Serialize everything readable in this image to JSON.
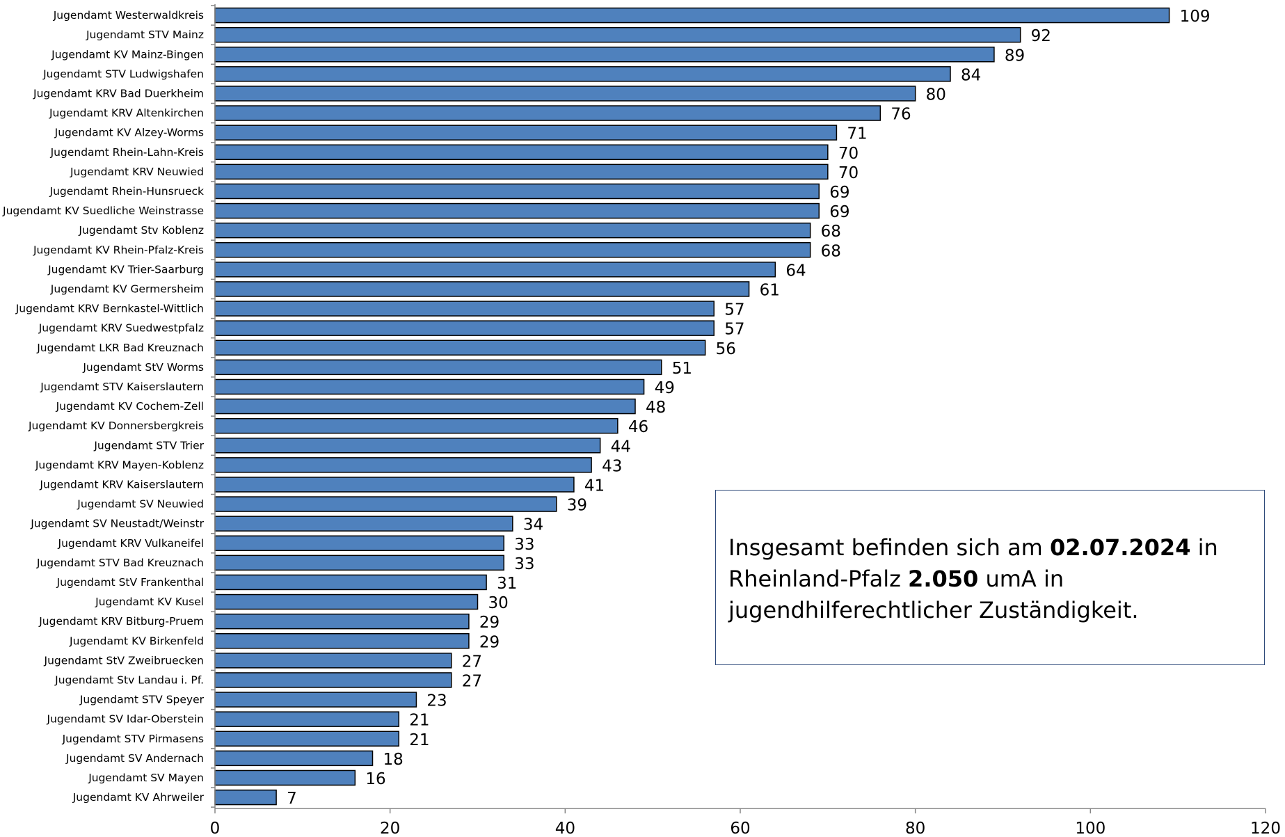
{
  "chart_data": {
    "type": "bar",
    "orientation": "horizontal",
    "categories": [
      "Jugendamt Westerwaldkreis",
      "Jugendamt STV Mainz",
      "Jugendamt KV Mainz-Bingen",
      "Jugendamt STV Ludwigshafen",
      "Jugendamt KRV Bad Duerkheim",
      "Jugendamt KRV Altenkirchen",
      "Jugendamt KV Alzey-Worms",
      "Jugendamt Rhein-Lahn-Kreis",
      "Jugendamt KRV Neuwied",
      "Jugendamt Rhein-Hunsrueck",
      "Jugendamt KV Suedliche Weinstrasse",
      "Jugendamt Stv Koblenz",
      "Jugendamt KV Rhein-Pfalz-Kreis",
      "Jugendamt KV Trier-Saarburg",
      "Jugendamt KV Germersheim",
      "Jugendamt KRV Bernkastel-Wittlich",
      "Jugendamt KRV Suedwestpfalz",
      "Jugendamt LKR Bad Kreuznach",
      "Jugendamt StV Worms",
      "Jugendamt STV Kaiserslautern",
      "Jugendamt KV Cochem-Zell",
      "Jugendamt KV Donnersbergkreis",
      "Jugendamt STV Trier",
      "Jugendamt KRV Mayen-Koblenz",
      "Jugendamt KRV Kaiserslautern",
      "Jugendamt SV Neuwied",
      "Jugendamt SV Neustadt/Weinstr",
      "Jugendamt KRV Vulkaneifel",
      "Jugendamt STV Bad Kreuznach",
      "Jugendamt StV Frankenthal",
      "Jugendamt KV Kusel",
      "Jugendamt KRV Bitburg-Pruem",
      "Jugendamt KV Birkenfeld",
      "Jugendamt StV Zweibruecken",
      "Jugendamt Stv Landau i. Pf.",
      "Jugendamt STV Speyer",
      "Jugendamt SV Idar-Oberstein",
      "Jugendamt STV Pirmasens",
      "Jugendamt SV Andernach",
      "Jugendamt SV Mayen",
      "Jugendamt KV Ahrweiler"
    ],
    "values": [
      109,
      92,
      89,
      84,
      80,
      76,
      71,
      70,
      70,
      69,
      69,
      68,
      68,
      64,
      61,
      57,
      57,
      56,
      51,
      49,
      48,
      46,
      44,
      43,
      41,
      39,
      34,
      33,
      33,
      31,
      30,
      29,
      29,
      27,
      27,
      23,
      21,
      21,
      18,
      16,
      7
    ],
    "xlim": [
      0,
      120
    ],
    "xticks": [
      0,
      20,
      40,
      60,
      80,
      100,
      120
    ],
    "title": "",
    "xlabel": "",
    "ylabel": "",
    "grid": false,
    "bar_color": "#4f81bd"
  },
  "note": {
    "pre1": "Insgesamt befinden sich am ",
    "date": "02.07.2024",
    "post1": " in",
    "pre2": "Rheinland-Pfalz ",
    "total": "2.050",
    "post2": " umA in",
    "line3": "jugendhilferechtlicher Zuständigkeit."
  }
}
